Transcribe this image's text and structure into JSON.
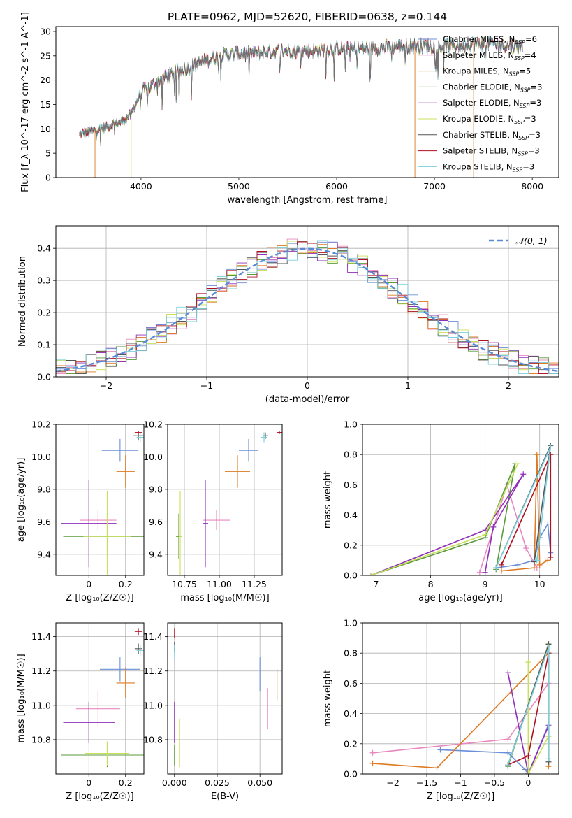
{
  "figure": {
    "title": "PLATE=0962, MJD=52620, FIBERID=0638, z=0.144"
  },
  "models": [
    {
      "name": "Chabrier MILES",
      "nssp": "6",
      "color": "#6a8fd8"
    },
    {
      "name": "Salpeter MILES",
      "nssp": "4",
      "color": "#e888c0"
    },
    {
      "name": "Kroupa MILES",
      "nssp": "5",
      "color": "#dd7a22"
    },
    {
      "name": "Chabrier ELODIE",
      "nssp": "3",
      "color": "#5a9a3a"
    },
    {
      "name": "Salpeter ELODIE",
      "nssp": "3",
      "color": "#8f2fb8"
    },
    {
      "name": "Kroupa ELODIE",
      "nssp": "3",
      "color": "#c8e05a"
    },
    {
      "name": "Chabrier STELIB",
      "nssp": "3",
      "color": "#555555"
    },
    {
      "name": "Salpeter STELIB",
      "nssp": "3",
      "color": "#b01020"
    },
    {
      "name": "Kroupa STELIB",
      "nssp": "3",
      "color": "#78d0dc"
    }
  ],
  "chart_data": [
    {
      "id": "spectrum",
      "type": "line",
      "xlabel": "wavelength [Angstrom, rest frame]",
      "ylabel": "Flux [f_λ 10^-17 erg cm^-2 s^-1 A^-1]",
      "xlim": [
        3130,
        8270
      ],
      "ylim": [
        0,
        31
      ],
      "xticks": [
        4000,
        5000,
        6000,
        7000,
        8000
      ],
      "yticks": [
        0,
        5,
        10,
        15,
        20,
        25,
        30
      ],
      "continuum": [
        [
          3370,
          9
        ],
        [
          3500,
          9.5
        ],
        [
          3650,
          10.5
        ],
        [
          3800,
          11.5
        ],
        [
          3900,
          13
        ],
        [
          4000,
          17.5
        ],
        [
          4200,
          20
        ],
        [
          4400,
          22
        ],
        [
          4600,
          23.5
        ],
        [
          4800,
          25
        ],
        [
          5000,
          25.5
        ],
        [
          5200,
          25.5
        ],
        [
          5400,
          26
        ],
        [
          5600,
          26
        ],
        [
          5800,
          26
        ],
        [
          6000,
          26.5
        ],
        [
          6200,
          26.5
        ],
        [
          6400,
          26.5
        ],
        [
          6600,
          27
        ],
        [
          6800,
          27
        ],
        [
          7000,
          27
        ],
        [
          7200,
          27
        ],
        [
          7400,
          27.5
        ],
        [
          7600,
          27.5
        ],
        [
          7800,
          27
        ],
        [
          7900,
          27
        ]
      ],
      "note": "",
      "series_legend": "models"
    },
    {
      "id": "residuals",
      "type": "line",
      "xlabel": "(data-model)/error",
      "ylabel": "Normed distribution",
      "xlim": [
        -2.5,
        2.5
      ],
      "ylim": [
        0,
        0.47
      ],
      "xticks": [
        -2,
        -1,
        0,
        1,
        2
      ],
      "yticks": [
        0.0,
        0.1,
        0.2,
        0.3,
        0.4
      ],
      "grid": true,
      "legend": "𝒩(0, 1)",
      "gaussian": {
        "mu": 0,
        "sigma": 1,
        "color": "#5a8ad6"
      }
    },
    {
      "id": "age_vs_Z",
      "type": "scatter",
      "xlabel": "Z [log₁₀(Z/Z☉)]",
      "ylabel": "age  [log₁₀(age/yr)]",
      "xlim": [
        -0.18,
        0.3
      ],
      "ylim": [
        9.27,
        10.2
      ],
      "xticks": [
        0.0,
        0.2
      ],
      "yticks": [
        9.4,
        9.6,
        9.8,
        10.0,
        10.2
      ],
      "grid": true,
      "points": [
        {
          "m": 0,
          "x": 0.17,
          "y": 10.04,
          "xe": 0.1,
          "ye": 0.07
        },
        {
          "m": 1,
          "x": 0.05,
          "y": 9.61,
          "xe": 0.1,
          "ye": 0.06
        },
        {
          "m": 2,
          "x": 0.2,
          "y": 9.91,
          "xe": 0.05,
          "ye": 0.1
        },
        {
          "m": 3,
          "x": 0.1,
          "y": 9.51,
          "xe": 0.24,
          "ye": 0.14
        },
        {
          "m": 4,
          "x": 0.0,
          "y": 9.59,
          "xe": 0.15,
          "ye": 0.27
        },
        {
          "m": 5,
          "x": 0.1,
          "y": 9.51,
          "xe": 0.13,
          "ye": 0.28
        },
        {
          "m": 6,
          "x": 0.27,
          "y": 10.13,
          "xe": 0.03,
          "ye": 0.03
        },
        {
          "m": 7,
          "x": 0.27,
          "y": 10.15,
          "xe": 0.02,
          "ye": 0.01
        },
        {
          "m": 8,
          "x": 0.28,
          "y": 10.12,
          "xe": 0.02,
          "ye": 0.03
        }
      ]
    },
    {
      "id": "age_vs_mass",
      "type": "scatter",
      "xlabel": "mass [log₁₀(M/M☉)]",
      "ylabel": "",
      "xlim": [
        10.63,
        11.45
      ],
      "ylim": [
        9.27,
        10.2
      ],
      "xticks": [
        10.75,
        11.0,
        11.25
      ],
      "xticklabels": [
        "10.75",
        "11.00",
        "11.25"
      ],
      "yticks": [
        9.4,
        9.6,
        9.8,
        10.0,
        10.2
      ],
      "grid": true,
      "points": [
        {
          "m": 0,
          "x": 11.21,
          "y": 10.04,
          "xe": 0.07,
          "ye": 0.07
        },
        {
          "m": 1,
          "x": 10.98,
          "y": 9.61,
          "xe": 0.1,
          "ye": 0.06
        },
        {
          "m": 2,
          "x": 11.13,
          "y": 9.91,
          "xe": 0.09,
          "ye": 0.1
        },
        {
          "m": 3,
          "x": 10.71,
          "y": 9.51,
          "xe": 0.02,
          "ye": 0.14
        },
        {
          "m": 4,
          "x": 10.9,
          "y": 9.59,
          "xe": 0.02,
          "ye": 0.27
        },
        {
          "m": 5,
          "x": 10.72,
          "y": 9.51,
          "xe": 0.01,
          "ye": 0.28
        },
        {
          "m": 6,
          "x": 11.33,
          "y": 10.13,
          "xe": 0.02,
          "ye": 0.02
        },
        {
          "m": 7,
          "x": 11.43,
          "y": 10.15,
          "xe": 0.02,
          "ye": 0.01
        },
        {
          "m": 8,
          "x": 11.32,
          "y": 10.12,
          "xe": 0.02,
          "ye": 0.03
        }
      ]
    },
    {
      "id": "weight_vs_age",
      "type": "line",
      "xlabel": "age  [log₁₀(age/yr)]",
      "ylabel": "mass weight",
      "xlim": [
        6.75,
        10.35
      ],
      "ylim": [
        0.0,
        1.0
      ],
      "xticks": [
        7,
        8,
        9,
        10
      ],
      "yticks": [
        0.0,
        0.2,
        0.4,
        0.6,
        0.8,
        1.0
      ],
      "grid": true,
      "series": [
        {
          "m": 0,
          "points": [
            [
              9.2,
              0.05
            ],
            [
              9.6,
              0.07
            ],
            [
              9.9,
              0.1
            ],
            [
              10.0,
              0.25
            ],
            [
              10.15,
              0.34
            ],
            [
              10.2,
              0.15
            ]
          ]
        },
        {
          "m": 1,
          "points": [
            [
              8.9,
              0.02
            ],
            [
              9.4,
              0.6
            ],
            [
              9.75,
              0.18
            ],
            [
              9.95,
              0.05
            ]
          ]
        },
        {
          "m": 2,
          "points": [
            [
              9.3,
              0.03
            ],
            [
              9.9,
              0.05
            ],
            [
              9.95,
              0.8
            ],
            [
              10.0,
              0.07
            ],
            [
              10.15,
              0.1
            ]
          ]
        },
        {
          "m": 3,
          "points": [
            [
              6.9,
              0.0
            ],
            [
              9.0,
              0.25
            ],
            [
              9.55,
              0.74
            ],
            [
              9.2,
              0.04
            ]
          ]
        },
        {
          "m": 4,
          "points": [
            [
              9.0,
              0.02
            ],
            [
              9.15,
              0.32
            ],
            [
              9.7,
              0.67
            ],
            [
              9.0,
              0.3
            ],
            [
              6.9,
              0.0
            ]
          ]
        },
        {
          "m": 5,
          "points": [
            [
              6.9,
              0.0
            ],
            [
              9.0,
              0.27
            ],
            [
              9.6,
              0.74
            ]
          ]
        },
        {
          "m": 6,
          "points": [
            [
              9.2,
              0.05
            ],
            [
              10.2,
              0.86
            ],
            [
              9.9,
              0.09
            ]
          ]
        },
        {
          "m": 7,
          "points": [
            [
              9.3,
              0.07
            ],
            [
              10.2,
              0.8
            ],
            [
              10.2,
              0.12
            ]
          ]
        },
        {
          "m": 8,
          "points": [
            [
              9.2,
              0.05
            ],
            [
              10.2,
              0.85
            ],
            [
              9.95,
              0.1
            ]
          ]
        }
      ]
    },
    {
      "id": "mass_vs_Z",
      "type": "scatter",
      "xlabel": "Z [log₁₀(Z/Z☉)]",
      "ylabel": "mass [log₁₀(M/M☉)]",
      "xlim": [
        -0.18,
        0.3
      ],
      "ylim": [
        10.6,
        11.48
      ],
      "xticks": [
        0.0,
        0.2
      ],
      "yticks": [
        10.8,
        11.0,
        11.2,
        11.4
      ],
      "grid": true,
      "points": [
        {
          "m": 0,
          "x": 0.17,
          "y": 11.21,
          "xe": 0.11,
          "ye": 0.07
        },
        {
          "m": 1,
          "x": 0.05,
          "y": 10.98,
          "xe": 0.12,
          "ye": 0.1
        },
        {
          "m": 2,
          "x": 0.2,
          "y": 11.13,
          "xe": 0.05,
          "ye": 0.09
        },
        {
          "m": 3,
          "x": 0.1,
          "y": 10.71,
          "xe": 0.25,
          "ye": 0.07
        },
        {
          "m": 4,
          "x": 0.0,
          "y": 10.9,
          "xe": 0.14,
          "ye": 0.12
        },
        {
          "m": 5,
          "x": 0.1,
          "y": 10.72,
          "xe": 0.12,
          "ye": 0.07
        },
        {
          "m": 6,
          "x": 0.27,
          "y": 11.33,
          "xe": 0.02,
          "ye": 0.03
        },
        {
          "m": 7,
          "x": 0.27,
          "y": 11.43,
          "xe": 0.02,
          "ye": 0.02
        },
        {
          "m": 8,
          "x": 0.28,
          "y": 11.32,
          "xe": 0.02,
          "ye": 0.03
        }
      ]
    },
    {
      "id": "mass_vs_ebv",
      "type": "scatter",
      "xlabel": "E(B-V)",
      "ylabel": "",
      "xlim": [
        -0.004,
        0.063
      ],
      "ylim": [
        10.6,
        11.48
      ],
      "xticks": [
        0.0,
        0.025,
        0.05
      ],
      "xticklabels": [
        "0.000",
        "0.025",
        "0.050"
      ],
      "yticks": [
        10.8,
        11.0,
        11.2,
        11.4
      ],
      "grid": true,
      "points": [
        {
          "m": 0,
          "x": 0.05,
          "y": 11.18,
          "xe": 0,
          "ye": 0.1
        },
        {
          "m": 1,
          "x": 0.0545,
          "y": 10.98,
          "xe": 0,
          "ye": 0.12
        },
        {
          "m": 2,
          "x": 0.06,
          "y": 11.12,
          "xe": 0,
          "ye": 0.09
        },
        {
          "m": 3,
          "x": 0.0,
          "y": 10.71,
          "xe": 0,
          "ye": 0.06
        },
        {
          "m": 4,
          "x": 0.0,
          "y": 10.9,
          "xe": 0,
          "ye": 0.12
        },
        {
          "m": 5,
          "x": 0.003,
          "y": 10.78,
          "xe": 0,
          "ye": 0.14
        },
        {
          "m": 6,
          "x": 0.0,
          "y": 11.34,
          "xe": 0,
          "ye": 0.03
        },
        {
          "m": 7,
          "x": 0.0,
          "y": 11.42,
          "xe": 0,
          "ye": 0.03
        },
        {
          "m": 8,
          "x": 0.0,
          "y": 11.31,
          "xe": 0,
          "ye": 0.04
        }
      ]
    },
    {
      "id": "weight_vs_Z",
      "type": "line",
      "xlabel": "Z [log₁₀(Z/Z☉)]",
      "ylabel": "mass weight",
      "xlim": [
        -2.45,
        0.45
      ],
      "ylim": [
        0.0,
        1.0
      ],
      "xticks": [
        -2.0,
        -1.5,
        -1.0,
        -0.5,
        0.0
      ],
      "yticks": [
        0.0,
        0.2,
        0.4,
        0.6,
        0.8,
        1.0
      ],
      "grid": true,
      "series": [
        {
          "m": 0,
          "points": [
            [
              -1.3,
              0.16
            ],
            [
              -0.3,
              0.14
            ],
            [
              -0.05,
              0.03
            ],
            [
              0.0,
              0.0
            ],
            [
              0.3,
              0.33
            ]
          ]
        },
        {
          "m": 1,
          "points": [
            [
              -2.3,
              0.14
            ],
            [
              -0.3,
              0.23
            ],
            [
              0.3,
              0.6
            ]
          ]
        },
        {
          "m": 2,
          "points": [
            [
              -2.3,
              0.07
            ],
            [
              -1.35,
              0.04
            ],
            [
              0.3,
              0.8
            ],
            [
              0.3,
              0.05
            ]
          ]
        },
        {
          "m": 3,
          "points": [
            [
              -0.3,
              0.05
            ],
            [
              0.3,
              0.86
            ],
            [
              0.3,
              0.25
            ]
          ]
        },
        {
          "m": 4,
          "points": [
            [
              -0.3,
              0.67
            ],
            [
              0.0,
              0.0
            ],
            [
              0.3,
              0.32
            ]
          ]
        },
        {
          "m": 5,
          "points": [
            [
              0.0,
              0.74
            ],
            [
              0.0,
              0.0
            ],
            [
              0.3,
              0.25
            ]
          ]
        },
        {
          "m": 6,
          "points": [
            [
              -0.3,
              0.06
            ],
            [
              0.3,
              0.86
            ],
            [
              0.3,
              0.08
            ]
          ]
        },
        {
          "m": 7,
          "points": [
            [
              -0.3,
              0.06
            ],
            [
              0.0,
              0.12
            ],
            [
              0.3,
              0.8
            ]
          ]
        },
        {
          "m": 8,
          "points": [
            [
              -0.3,
              0.06
            ],
            [
              0.3,
              0.84
            ],
            [
              0.3,
              0.1
            ]
          ]
        }
      ]
    }
  ]
}
